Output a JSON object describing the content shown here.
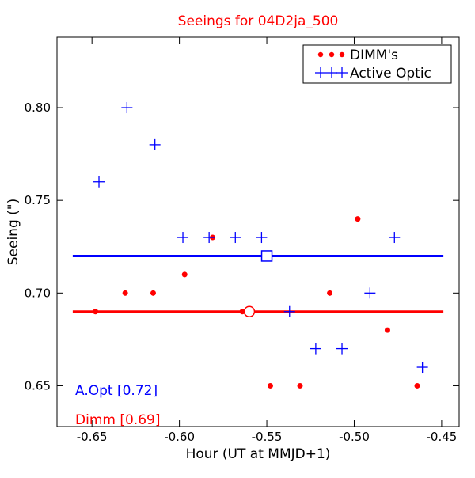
{
  "chart_data": {
    "type": "scatter",
    "title": "Seeings for 04D2ja_500",
    "xlabel": "Hour (UT at MMJD+1)",
    "ylabel": "Seeing (\")",
    "xlim": [
      -0.67,
      -0.44
    ],
    "ylim": [
      0.628,
      0.838
    ],
    "x_ticks": [
      -0.65,
      -0.6,
      -0.55,
      -0.5,
      -0.45
    ],
    "x_tick_labels": [
      "-0.65",
      "-0.60",
      "-0.55",
      "-0.50",
      "-0.45"
    ],
    "y_ticks": [
      0.65,
      0.7,
      0.75,
      0.8
    ],
    "y_tick_labels": [
      "0.65",
      "0.70",
      "0.75",
      "0.80"
    ],
    "grid": false,
    "legend_position": "top-right",
    "series": [
      {
        "name": "DIMM's",
        "marker": "dot",
        "color": "#ff0000",
        "points": [
          {
            "x": -0.648,
            "y": 0.69
          },
          {
            "x": -0.631,
            "y": 0.7
          },
          {
            "x": -0.615,
            "y": 0.7
          },
          {
            "x": -0.597,
            "y": 0.71
          },
          {
            "x": -0.581,
            "y": 0.73
          },
          {
            "x": -0.564,
            "y": 0.69
          },
          {
            "x": -0.548,
            "y": 0.65
          },
          {
            "x": -0.531,
            "y": 0.65
          },
          {
            "x": -0.514,
            "y": 0.7
          },
          {
            "x": -0.498,
            "y": 0.74
          },
          {
            "x": -0.481,
            "y": 0.68
          },
          {
            "x": -0.464,
            "y": 0.65
          }
        ]
      },
      {
        "name": "Active Optic",
        "marker": "plus",
        "color": "#0000ff",
        "points": [
          {
            "x": -0.646,
            "y": 0.76
          },
          {
            "x": -0.63,
            "y": 0.8
          },
          {
            "x": -0.614,
            "y": 0.78
          },
          {
            "x": -0.598,
            "y": 0.73
          },
          {
            "x": -0.583,
            "y": 0.73
          },
          {
            "x": -0.568,
            "y": 0.73
          },
          {
            "x": -0.553,
            "y": 0.73
          },
          {
            "x": -0.537,
            "y": 0.69
          },
          {
            "x": -0.522,
            "y": 0.67
          },
          {
            "x": -0.507,
            "y": 0.67
          },
          {
            "x": -0.491,
            "y": 0.7
          },
          {
            "x": -0.477,
            "y": 0.73
          },
          {
            "x": -0.461,
            "y": 0.66
          }
        ]
      }
    ],
    "mean_lines": [
      {
        "series": "Active Optic",
        "y": 0.72,
        "x_start": -0.661,
        "x_end": -0.449,
        "marker_x": -0.55,
        "marker": "square",
        "color": "#0000ff"
      },
      {
        "series": "DIMM's",
        "y": 0.69,
        "x_start": -0.661,
        "x_end": -0.449,
        "marker_x": -0.56,
        "marker": "circle",
        "color": "#ff0000"
      }
    ],
    "annotations": [
      {
        "text": "A.Opt [0.72]",
        "color": "#0000ff"
      },
      {
        "text": "Dimm [0.69]",
        "color": "#ff0000"
      }
    ]
  }
}
